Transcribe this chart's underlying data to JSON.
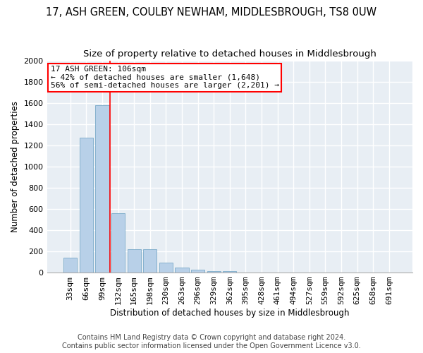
{
  "title": "17, ASH GREEN, COULBY NEWHAM, MIDDLESBROUGH, TS8 0UW",
  "subtitle": "Size of property relative to detached houses in Middlesbrough",
  "xlabel": "Distribution of detached houses by size in Middlesbrough",
  "ylabel": "Number of detached properties",
  "bar_color": "#b8d0e8",
  "bar_edge_color": "#7aaac8",
  "categories": [
    "33sqm",
    "66sqm",
    "99sqm",
    "132sqm",
    "165sqm",
    "198sqm",
    "230sqm",
    "263sqm",
    "296sqm",
    "329sqm",
    "362sqm",
    "395sqm",
    "428sqm",
    "461sqm",
    "494sqm",
    "527sqm",
    "559sqm",
    "592sqm",
    "625sqm",
    "658sqm",
    "691sqm"
  ],
  "values": [
    140,
    1270,
    1580,
    560,
    220,
    220,
    95,
    50,
    30,
    15,
    15,
    0,
    0,
    0,
    0,
    0,
    0,
    0,
    0,
    0,
    0
  ],
  "vline_bin_index": 2,
  "annotation_line1": "17 ASH GREEN: 106sqm",
  "annotation_line2": "← 42% of detached houses are smaller (1,648)",
  "annotation_line3": "56% of semi-detached houses are larger (2,201) →",
  "annotation_box_color": "white",
  "annotation_box_edge_color": "red",
  "vline_color": "red",
  "ylim": [
    0,
    2000
  ],
  "yticks": [
    0,
    200,
    400,
    600,
    800,
    1000,
    1200,
    1400,
    1600,
    1800,
    2000
  ],
  "footnote_line1": "Contains HM Land Registry data © Crown copyright and database right 2024.",
  "footnote_line2": "Contains public sector information licensed under the Open Government Licence v3.0.",
  "background_color": "#ffffff",
  "plot_bg_color": "#e8eef4",
  "grid_color": "#ffffff",
  "title_fontsize": 10.5,
  "subtitle_fontsize": 9.5,
  "axis_label_fontsize": 8.5,
  "tick_fontsize": 8,
  "annotation_fontsize": 8,
  "footnote_fontsize": 7
}
